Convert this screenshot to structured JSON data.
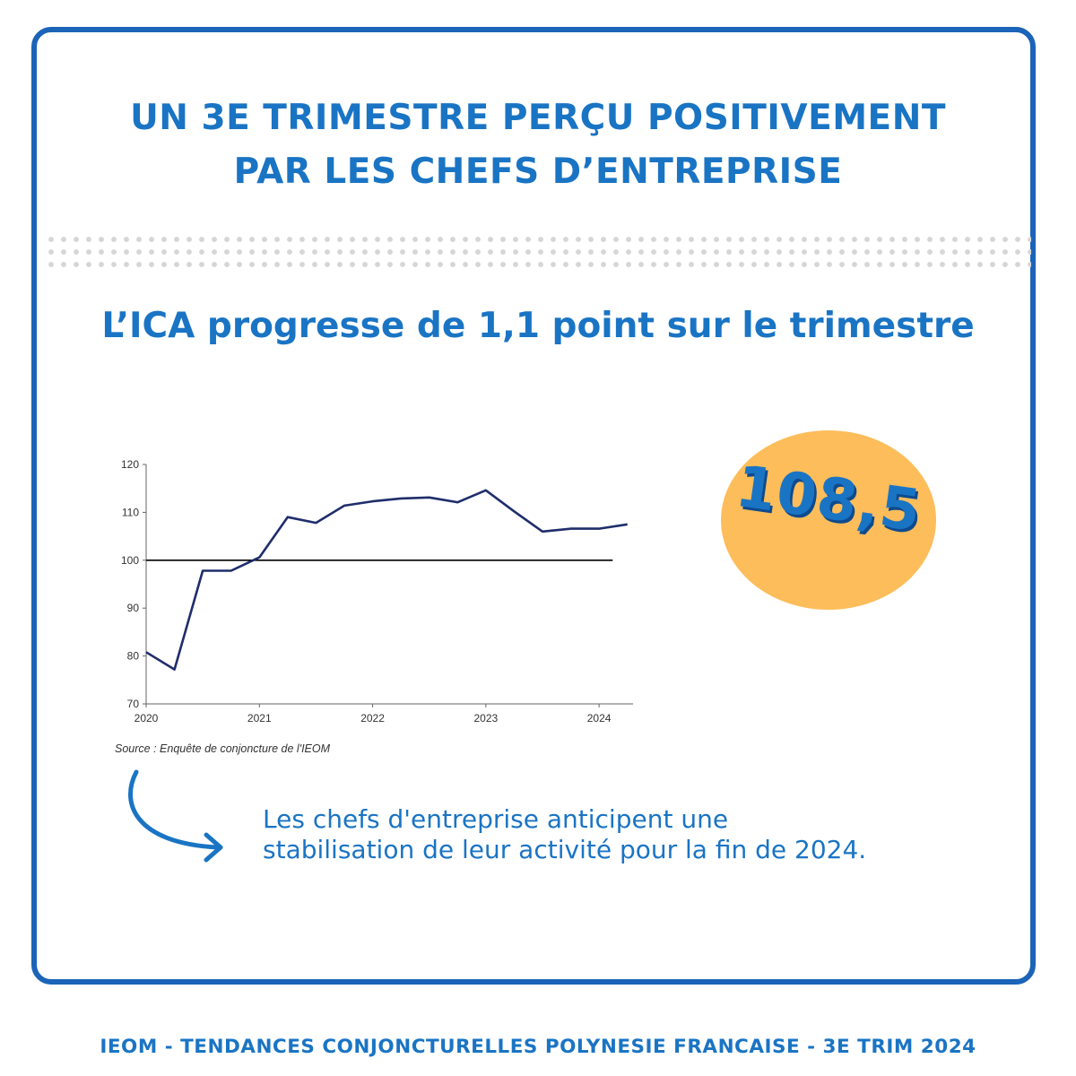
{
  "headline": {
    "line1": "UN 3E TRIMESTRE PERÇU POSITIVEMENT",
    "line2": "PAR LES CHEFS D’ENTREPRISE"
  },
  "subheadline": "L’ICA progresse de 1,1 point sur le trimestre",
  "kpi": {
    "value": "108,5",
    "bubble_color": "#fdbd5a",
    "text_color": "#1a74c4"
  },
  "source": "Source : Enquête de conjoncture de l'IEOM",
  "note": {
    "line1": "Les chefs d'entreprise anticipent une",
    "line2": "stabilisation de leur activité pour la fin de 2024."
  },
  "footer": "IEOM - TENDANCES CONJONCTURELLES POLYNESIE FRANCAISE - 3E TRIM 2024",
  "colors": {
    "accent": "#1a74c4",
    "frame": "#1b64b8",
    "line": "#1f2d6b"
  },
  "icons": {
    "arrow": "curved-arrow-icon"
  },
  "chart_data": {
    "type": "line",
    "x": [
      2020.0,
      2020.25,
      2020.5,
      2020.75,
      2021.0,
      2021.25,
      2021.5,
      2021.75,
      2022.0,
      2022.25,
      2022.5,
      2022.75,
      2023.0,
      2023.25,
      2023.5,
      2023.75,
      2024.0,
      2024.25
    ],
    "series": [
      {
        "values": [
          80.8,
          77.2,
          97.8,
          97.8,
          100.6,
          109.0,
          107.8,
          111.4,
          112.3,
          112.9,
          113.1,
          112.1,
          114.6,
          110.2,
          106.0,
          106.6,
          106.6,
          107.5
        ]
      }
    ],
    "reference_line": 100,
    "xticks": [
      "2020",
      "2021",
      "2022",
      "2023",
      "2024"
    ],
    "yticks": [
      "70",
      "80",
      "90",
      "100",
      "110",
      "120"
    ],
    "xlim": [
      2020,
      2024.3
    ],
    "ylim": [
      70,
      120
    ],
    "grid": false,
    "title": "",
    "xlabel": "",
    "ylabel": ""
  }
}
